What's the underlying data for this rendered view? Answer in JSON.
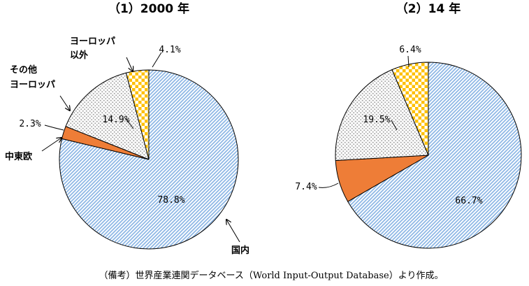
{
  "colors": {
    "domestic": "#8fb8e6",
    "cee": "#ee7d37",
    "other_europe": "#a6a6a6",
    "non_europe": "#ffc000"
  },
  "chart_data": [
    {
      "type": "pie",
      "title": "（1）2000 年",
      "slices": [
        {
          "key": "domestic",
          "category": "国内",
          "value": 78.8,
          "label": "78.8%"
        },
        {
          "key": "cee",
          "category": "中東欧",
          "value": 2.3,
          "label": "2.3%"
        },
        {
          "key": "other_europe",
          "category": "その他\nヨーロッパ",
          "value": 14.9,
          "label": "14.9%"
        },
        {
          "key": "non_europe",
          "category": "ヨーロッパ\n以外",
          "value": 4.1,
          "label": "4.1%"
        }
      ]
    },
    {
      "type": "pie",
      "title": "（2）14 年",
      "slices": [
        {
          "key": "domestic",
          "category": "",
          "value": 66.7,
          "label": "66.7%"
        },
        {
          "key": "cee",
          "category": "",
          "value": 7.4,
          "label": "7.4%"
        },
        {
          "key": "other_europe",
          "category": "",
          "value": 19.5,
          "label": "19.5%"
        },
        {
          "key": "non_europe",
          "category": "",
          "value": 6.4,
          "label": "6.4%"
        }
      ]
    }
  ],
  "footnote": "（備考）世界産業連関データベース（World Input-Output Database）より作成。"
}
